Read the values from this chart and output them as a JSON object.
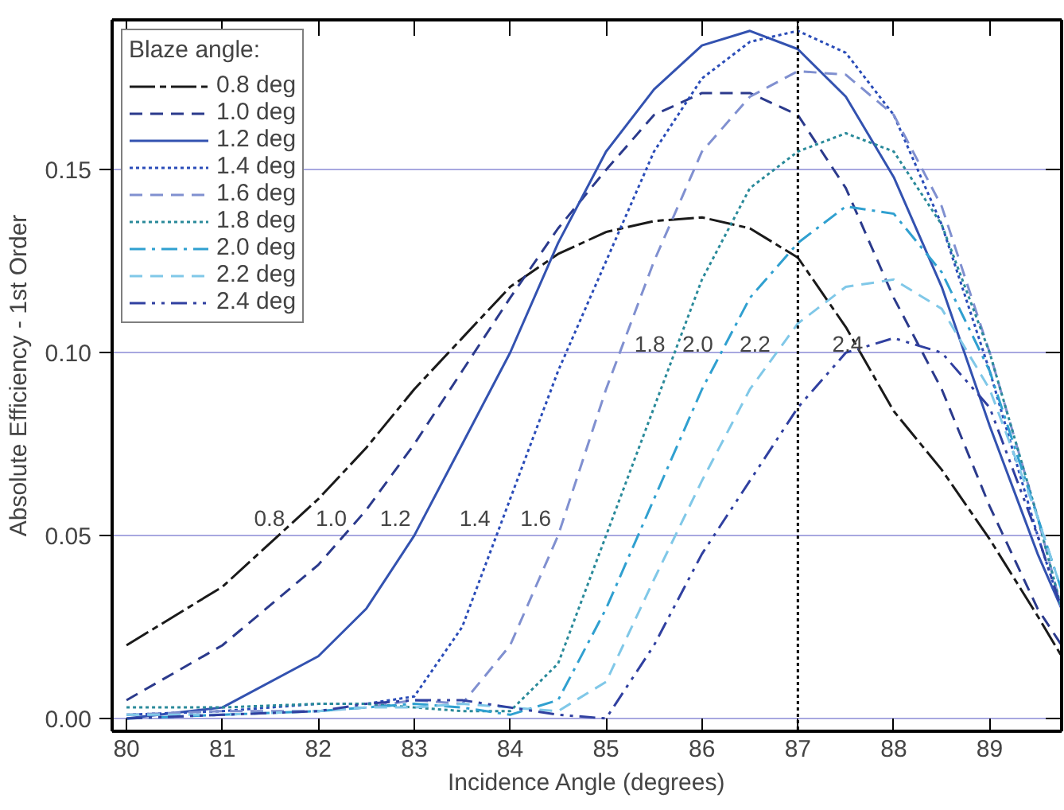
{
  "chart_data": {
    "type": "line",
    "xlabel": "Incidence Angle (degrees)",
    "ylabel": "Absolute Efficiency - 1st Order",
    "legend_title": "Blaze angle:",
    "xlim": [
      79.85,
      89.75
    ],
    "ylim": [
      -0.0035,
      0.191
    ],
    "xticks": [
      80,
      81,
      82,
      83,
      84,
      85,
      86,
      87,
      88,
      89
    ],
    "yticks": [
      {
        "value": 0,
        "label": "0.00"
      },
      0.05,
      {
        "value": 0.1,
        "label": "0.10"
      },
      0.15
    ],
    "grid": "y",
    "legend": "top left",
    "marker": "none",
    "x": [
      80,
      81,
      82,
      82.5,
      83,
      83.5,
      84,
      84.5,
      85,
      85.5,
      86,
      86.5,
      87,
      87.5,
      88,
      88.5,
      89,
      89.5,
      89.75
    ],
    "series": [
      {
        "name": "0.8 deg",
        "color": "#1a1a1a",
        "line_style": "longdashshort",
        "values": [
          0.02,
          0.036,
          0.06,
          0.074,
          0.09,
          0.104,
          0.118,
          0.127,
          0.133,
          0.136,
          0.137,
          0.134,
          0.126,
          0.107,
          0.084,
          0.068,
          0.049,
          0.028,
          0.017
        ]
      },
      {
        "name": "1.0 deg",
        "color": "#2b3a8c",
        "line_style": "dashed",
        "values": [
          0.005,
          0.02,
          0.042,
          0.057,
          0.075,
          0.095,
          0.115,
          0.134,
          0.15,
          0.165,
          0.171,
          0.171,
          0.165,
          0.145,
          0.115,
          0.09,
          0.058,
          0.03,
          0.02
        ]
      },
      {
        "name": "1.2 deg",
        "color": "#3352b0",
        "line_style": "solid",
        "values": [
          0.0,
          0.003,
          0.017,
          0.03,
          0.05,
          0.075,
          0.1,
          0.13,
          0.155,
          0.172,
          0.184,
          0.188,
          0.183,
          0.17,
          0.148,
          0.118,
          0.08,
          0.045,
          0.03
        ]
      },
      {
        "name": "1.4 deg",
        "color": "#2a4cb8",
        "line_style": "dotted",
        "values": [
          0.001,
          0.002,
          0.004,
          0.004,
          0.006,
          0.025,
          0.06,
          0.095,
          0.125,
          0.155,
          0.175,
          0.185,
          0.188,
          0.182,
          0.165,
          0.135,
          0.095,
          0.05,
          0.03
        ]
      },
      {
        "name": "1.6 deg",
        "color": "#8090d0",
        "line_style": "dashed",
        "values": [
          0.001,
          0.002,
          0.002,
          0.003,
          0.005,
          0.004,
          0.02,
          0.05,
          0.09,
          0.125,
          0.155,
          0.17,
          0.177,
          0.176,
          0.165,
          0.14,
          0.1,
          0.055,
          0.03
        ]
      },
      {
        "name": "1.8 deg",
        "color": "#2a8a9a",
        "line_style": "dotted",
        "values": [
          0.003,
          0.003,
          0.004,
          0.004,
          0.003,
          0.002,
          0.002,
          0.015,
          0.05,
          0.085,
          0.12,
          0.145,
          0.155,
          0.16,
          0.155,
          0.135,
          0.1,
          0.055,
          0.03
        ]
      },
      {
        "name": "2.0 deg",
        "color": "#30a0d0",
        "line_style": "dashdot",
        "values": [
          0.0,
          0.001,
          0.002,
          0.003,
          0.004,
          0.003,
          0.001,
          0.005,
          0.03,
          0.06,
          0.09,
          0.115,
          0.13,
          0.14,
          0.138,
          0.122,
          0.095,
          0.055,
          0.035
        ]
      },
      {
        "name": "2.2 deg",
        "color": "#80c8e8",
        "line_style": "dashed",
        "values": [
          0.001,
          0.001,
          0.002,
          0.003,
          0.003,
          0.004,
          0.003,
          0.002,
          0.01,
          0.038,
          0.065,
          0.09,
          0.108,
          0.118,
          0.12,
          0.112,
          0.09,
          0.055,
          0.035
        ]
      },
      {
        "name": "2.4 deg",
        "color": "#3040a0",
        "line_style": "dashdotdot",
        "values": [
          0.0,
          0.001,
          0.002,
          0.004,
          0.005,
          0.005,
          0.003,
          0.001,
          0.0,
          0.02,
          0.045,
          0.065,
          0.085,
          0.1,
          0.104,
          0.1,
          0.085,
          0.05,
          0.03
        ]
      }
    ],
    "ref_lines": [
      {
        "axis": "x",
        "value": 87,
        "color": "#000000",
        "line_style": "dotted"
      }
    ],
    "annotations": [
      "0.8",
      "1.0",
      "1.2",
      "1.4",
      "1.6",
      "1.8",
      "2.0",
      "2.2",
      "2.4"
    ]
  }
}
